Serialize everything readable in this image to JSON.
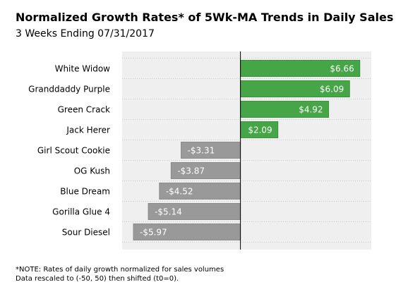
{
  "chart_data": {
    "type": "bar",
    "orientation": "horizontal",
    "title": "Normalized Growth Rates* of 5Wk-MA Trends in Daily Sales",
    "subtitle": "3 Weeks Ending 07/31/2017",
    "categories": [
      "White Widow",
      "Granddaddy Purple",
      "Green Crack",
      "Jack Herer",
      "Girl Scout Cookie",
      "OG Kush",
      "Blue Dream",
      "Gorilla Glue 4",
      "Sour Diesel"
    ],
    "values": [
      6.66,
      6.09,
      4.92,
      2.09,
      -3.31,
      -3.87,
      -4.52,
      -5.14,
      -5.97
    ],
    "data_labels": [
      "$6.66",
      "$6.09",
      "$4.92",
      "$2.09",
      "-$3.31",
      "-$3.87",
      "-$4.52",
      "-$5.14",
      "-$5.97"
    ],
    "xlim": [
      -6.6,
      7.3
    ],
    "xlabel": "",
    "ylabel": "",
    "grid": true,
    "colors": {
      "positive": "#46a546",
      "negative": "#999999",
      "background": "#efefef",
      "zero_line": "#000000"
    }
  },
  "note": {
    "line1": "*NOTE: Rates of daily growth normalized for sales volumes",
    "line2": "Data rescaled to (-50, 50) then shifted (t0=0)."
  }
}
